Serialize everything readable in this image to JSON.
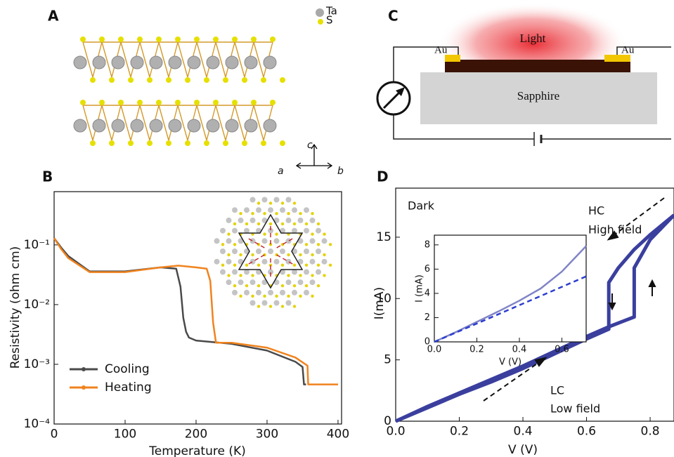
{
  "panels": {
    "labels": [
      "A",
      "B",
      "C",
      "D"
    ],
    "a": {
      "legend": [
        "Ta",
        "S"
      ],
      "axes": [
        "c",
        "a",
        "b"
      ]
    },
    "c": {
      "light": "Light",
      "electrodes": [
        "Au",
        "Au"
      ],
      "substrate": "Sapphire"
    },
    "d": {
      "annotations": [
        "Dark",
        "HC",
        "High field",
        "LC",
        "Low field"
      ]
    }
  },
  "chart_data": [
    {
      "type": "line",
      "xlabel": "Temperature (K)",
      "ylabel": "Resistivity (ohm cm)",
      "log_y": true,
      "legend": "lower left",
      "xlim": [
        0,
        405
      ],
      "xticks": [
        0,
        100,
        200,
        300,
        400
      ],
      "ylim": [
        0.0001,
        0.78
      ],
      "yticks": [
        {
          "value": 0.0001,
          "label": "10⁻⁴"
        },
        {
          "value": 0.001,
          "label": "10⁻³"
        },
        {
          "value": 0.01,
          "label": "10⁻²"
        },
        {
          "value": 0.1,
          "label": "10⁻¹"
        }
      ],
      "series": [
        {
          "name": "Cooling",
          "color": "#4a4a4a",
          "x": [
            0,
            10,
            20,
            50,
            100,
            150,
            172,
            178,
            182,
            186,
            190,
            200,
            250,
            300,
            340,
            350,
            352,
            355
          ],
          "values": [
            0.13,
            0.09,
            0.065,
            0.036,
            0.036,
            0.042,
            0.04,
            0.02,
            0.006,
            0.0035,
            0.0028,
            0.0025,
            0.0022,
            0.0017,
            0.0011,
            0.0009,
            0.00046,
            0.00046
          ]
        },
        {
          "name": "Heating",
          "color": "#f0831e",
          "x": [
            0,
            10,
            20,
            50,
            100,
            150,
            175,
            200,
            215,
            220,
            224,
            228,
            250,
            300,
            340,
            357,
            358,
            400
          ],
          "values": [
            0.13,
            0.085,
            0.06,
            0.035,
            0.035,
            0.042,
            0.045,
            0.042,
            0.04,
            0.025,
            0.005,
            0.0023,
            0.0023,
            0.0019,
            0.0013,
            0.00095,
            0.00046,
            0.00046
          ]
        }
      ]
    },
    {
      "type": "line",
      "xlabel": "V (V)",
      "ylabel": "I(mA)",
      "xlim": [
        0,
        0.875
      ],
      "xticks": [
        {
          "value": 0,
          "label": "0.0"
        },
        0.2,
        0.4,
        0.6,
        0.8
      ],
      "ylim": [
        0,
        19
      ],
      "yticks": [
        0,
        5,
        10,
        15
      ],
      "series": [
        {
          "color": "#3a3f9e",
          "x": [
            0,
            0.1,
            0.2,
            0.3,
            0.4,
            0.5,
            0.6,
            0.67,
            0.72,
            0.75,
            0.75,
            0.8,
            0.86,
            0.875
          ],
          "values": [
            0,
            1.2,
            2.3,
            3.4,
            4.5,
            5.7,
            6.9,
            7.7,
            8.2,
            8.5,
            12.5,
            14.8,
            16.4,
            16.8
          ]
        },
        {
          "color": "#3a3f9e",
          "x": [
            0.875,
            0.8,
            0.75,
            0.7,
            0.67,
            0.67,
            0.6,
            0.5,
            0.4,
            0.3,
            0.2,
            0.1,
            0
          ],
          "values": [
            16.8,
            15.2,
            14.0,
            12.5,
            11.3,
            7.5,
            6.7,
            5.5,
            4.3,
            3.2,
            2.2,
            1.1,
            0
          ]
        }
      ]
    },
    {
      "type": "line",
      "xlabel": "V (V)",
      "ylabel": "I (mA)",
      "xlim": [
        0,
        0.714
      ],
      "xticks": [
        {
          "value": 0,
          "label": "0.0"
        },
        0.2,
        0.4,
        0.6
      ],
      "ylim": [
        0,
        8.8
      ],
      "yticks": [
        0,
        2,
        4,
        6,
        8
      ],
      "series": [
        {
          "color": "#8084c6",
          "x": [
            0,
            0.1,
            0.2,
            0.3,
            0.4,
            0.5,
            0.6,
            0.714
          ],
          "values": [
            0,
            0.8,
            1.65,
            2.5,
            3.4,
            4.4,
            5.8,
            7.9
          ]
        },
        {
          "color": "#2c3ed0",
          "style": "dashed",
          "x": [
            0,
            0.714
          ],
          "values": [
            0,
            5.4
          ]
        }
      ]
    }
  ]
}
